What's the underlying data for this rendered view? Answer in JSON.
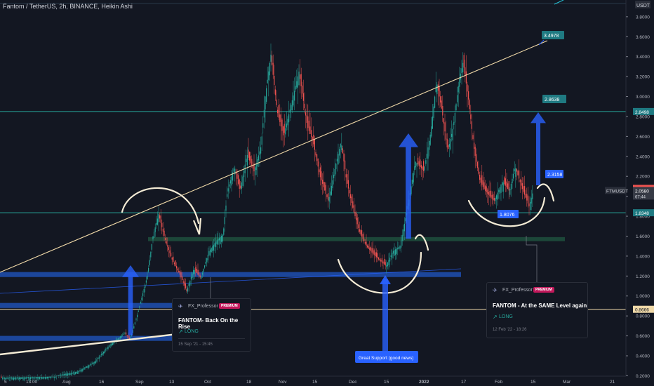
{
  "header": {
    "title": "Fantom / TetherUS, 2h, BINANCE, Heikin Ashi"
  },
  "colors": {
    "up": "#26a69a",
    "down": "#ef5350",
    "trendline": "#f0d9a8",
    "level": "#26a69a",
    "zone": "#1e4fb0",
    "arrow": "#2962ff"
  },
  "chart_data": {
    "type": "candlestick",
    "title": "Fantom / TetherUS, 2h, BINANCE, Heikin Ashi",
    "xlabel": "",
    "ylabel": "USDT",
    "ylim": [
      0.2,
      3.9
    ],
    "x_ticks": [
      "13:00",
      "Aug",
      "16",
      "Sep",
      "13",
      "Oct",
      "18",
      "Nov",
      "15",
      "Dec",
      "15",
      "2022",
      "17",
      "Feb",
      "15",
      "Mar",
      "21"
    ],
    "y_ticks": [
      "3.8000",
      "3.6000",
      "3.4000",
      "3.2000",
      "3.0000",
      "2.8000",
      "2.6000",
      "2.4000",
      "2.2000",
      "2.0000",
      "1.8000",
      "1.6000",
      "1.4000",
      "1.2000",
      "1.0000",
      "0.8000",
      "0.6000",
      "0.4000",
      "0.2000"
    ],
    "price_path": [
      [
        0,
        0.18
      ],
      [
        70,
        0.19
      ],
      [
        110,
        0.24
      ],
      [
        135,
        0.34
      ],
      [
        155,
        0.5
      ],
      [
        178,
        0.63
      ],
      [
        185,
        0.56
      ],
      [
        196,
        0.82
      ],
      [
        210,
        1.2
      ],
      [
        218,
        1.6
      ],
      [
        226,
        1.82
      ],
      [
        236,
        1.55
      ],
      [
        246,
        1.35
      ],
      [
        256,
        1.22
      ],
      [
        266,
        1.05
      ],
      [
        276,
        1.27
      ],
      [
        286,
        1.18
      ],
      [
        298,
        1.45
      ],
      [
        308,
        1.55
      ],
      [
        318,
        1.62
      ],
      [
        324,
        2.05
      ],
      [
        334,
        2.3
      ],
      [
        342,
        2.05
      ],
      [
        352,
        2.42
      ],
      [
        362,
        2.25
      ],
      [
        372,
        2.5
      ],
      [
        378,
        3.0
      ],
      [
        386,
        3.42
      ],
      [
        395,
        2.85
      ],
      [
        404,
        2.6
      ],
      [
        416,
        2.95
      ],
      [
        426,
        3.25
      ],
      [
        438,
        2.7
      ],
      [
        446,
        2.55
      ],
      [
        456,
        2.2
      ],
      [
        468,
        1.95
      ],
      [
        478,
        2.3
      ],
      [
        486,
        2.55
      ],
      [
        494,
        2.15
      ],
      [
        504,
        1.85
      ],
      [
        512,
        1.65
      ],
      [
        522,
        1.5
      ],
      [
        532,
        1.42
      ],
      [
        542,
        1.35
      ],
      [
        550,
        1.3
      ],
      [
        560,
        1.45
      ],
      [
        570,
        1.5
      ],
      [
        580,
        1.85
      ],
      [
        592,
        2.35
      ],
      [
        604,
        2.25
      ],
      [
        614,
        2.65
      ],
      [
        622,
        3.15
      ],
      [
        630,
        2.85
      ],
      [
        638,
        2.45
      ],
      [
        646,
        2.7
      ],
      [
        654,
        3.15
      ],
      [
        660,
        3.35
      ],
      [
        668,
        2.95
      ],
      [
        676,
        2.45
      ],
      [
        684,
        2.15
      ],
      [
        692,
        2.05
      ],
      [
        704,
        1.95
      ],
      [
        716,
        2.15
      ],
      [
        726,
        2.05
      ],
      [
        734,
        2.3
      ],
      [
        744,
        2.08
      ],
      [
        754,
        1.9
      ],
      [
        760,
        2.06
      ]
    ],
    "levels": [
      {
        "label": "2.8498",
        "value": 2.8498,
        "color": "#26a69a"
      },
      {
        "label": "1.8348",
        "value": 1.8348,
        "color": "#26a69a"
      },
      {
        "label": "0.8666",
        "value": 0.8666,
        "color": "#f0d9a8"
      }
    ],
    "current_price_labels": [
      {
        "label": "2.0791",
        "value": 2.0791,
        "color": "#ef5350"
      },
      {
        "label": "2.0580",
        "value": 2.058,
        "color": "#2a2e39",
        "prefix": "FTMUSDT",
        "sub": "67:44"
      }
    ],
    "zones": [
      {
        "from": 1.19,
        "to": 1.24,
        "x_from": 0,
        "x_to": 657
      },
      {
        "from": 0.88,
        "to": 0.93,
        "x_from": 0,
        "x_to": 245
      },
      {
        "from": 0.55,
        "to": 0.6,
        "x_from": 0,
        "x_to": 245
      }
    ],
    "support_band": {
      "from": 1.55,
      "to": 1.59
    },
    "annotations": [
      {
        "text": "3.4978",
        "value": 3.4978
      },
      {
        "text": "2.8638",
        "value": 2.8638
      },
      {
        "text": "2.3158",
        "value": 2.3158
      },
      {
        "text": "1.8076",
        "value": 1.8076
      },
      {
        "text": "Great Support (good news)"
      }
    ],
    "ideas": [
      {
        "author": "FX_Professor",
        "badge": "PREMIUM",
        "title": "FANTOM- Back On the Rise",
        "side": "LONG",
        "date": "15 Sep '21 - 15:45"
      },
      {
        "author": "FX_Professor",
        "badge": "PREMIUM",
        "title": "FANTOM - At the SAME Level again",
        "side": "LONG",
        "date": "12 Feb '22 - 18:26"
      }
    ],
    "axis_unit": "USDT",
    "bottom_left": "5"
  }
}
